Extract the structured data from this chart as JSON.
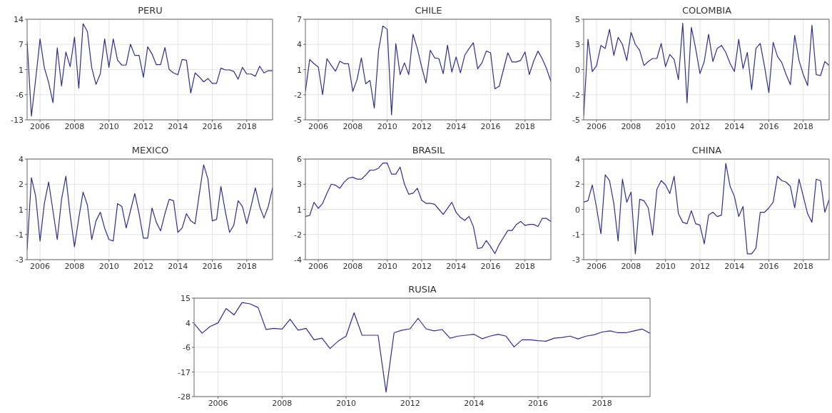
{
  "chart_data": [
    {
      "type": "line",
      "title": "PERU",
      "x": [
        2005.25,
        2005.5,
        2005.75,
        2006,
        2006.25,
        2006.5,
        2006.75,
        2007,
        2007.25,
        2007.5,
        2007.75,
        2008,
        2008.25,
        2008.5,
        2008.75,
        2009,
        2009.25,
        2009.5,
        2009.75,
        2010,
        2010.25,
        2010.5,
        2010.75,
        2011,
        2011.25,
        2011.5,
        2011.75,
        2012,
        2012.25,
        2012.5,
        2012.75,
        2013,
        2013.25,
        2013.5,
        2013.75,
        2014,
        2014.25,
        2014.5,
        2014.75,
        2015,
        2015.25,
        2015.5,
        2015.75,
        2016,
        2016.25,
        2016.5,
        2016.75,
        2017,
        2017.25,
        2017.5,
        2017.75,
        2018,
        2018.25,
        2018.5,
        2018.75,
        2019,
        2019.25,
        2019.5
      ],
      "series": [
        {
          "color": "#2e2e8f",
          "values": [
            8,
            -12,
            -2,
            8.7,
            1,
            -3,
            -8.4,
            6.3,
            -3.9,
            5.2,
            1.3,
            9.2,
            -4.5,
            12.8,
            10.7,
            1,
            -3.5,
            -0.6,
            8.7,
            1.1,
            8.7,
            3,
            1.7,
            1.7,
            7.3,
            4.3,
            4.3,
            -1.6,
            6.6,
            4.7,
            1.8,
            1.8,
            6.4,
            0.5,
            -0.4,
            -0.9,
            3.2,
            3,
            -5.8,
            -0.4,
            -1.5,
            -2.8,
            -1.9,
            -3.2,
            -3.2,
            0.9,
            0.4,
            0.4,
            0,
            -2.1,
            1.1,
            -0.7,
            -0.7,
            -1.3,
            1.4,
            -0.4,
            0.2,
            0.2
          ]
        }
      ],
      "xlim": [
        2005.25,
        2019.5
      ],
      "xticks": [
        2006,
        2008,
        2010,
        2012,
        2014,
        2016,
        2018
      ],
      "ylim": [
        -13,
        14
      ],
      "yticks": [
        -13,
        {
          "value": -6.25,
          "label": "-6"
        },
        {
          "value": 0.5,
          "label": "1"
        },
        {
          "value": 7.25,
          "label": "7"
        },
        14
      ],
      "grid": true
    },
    {
      "type": "line",
      "title": "CHILE",
      "x": [
        2005.25,
        2005.5,
        2005.75,
        2006,
        2006.25,
        2006.5,
        2006.75,
        2007,
        2007.25,
        2007.5,
        2007.75,
        2008,
        2008.25,
        2008.5,
        2008.75,
        2009,
        2009.25,
        2009.5,
        2009.75,
        2010,
        2010.25,
        2010.5,
        2010.75,
        2011,
        2011.25,
        2011.5,
        2011.75,
        2012,
        2012.25,
        2012.5,
        2012.75,
        2013,
        2013.25,
        2013.5,
        2013.75,
        2014,
        2014.25,
        2014.5,
        2014.75,
        2015,
        2015.25,
        2015.5,
        2015.75,
        2016,
        2016.25,
        2016.5,
        2016.75,
        2017,
        2017.25,
        2017.5,
        2017.75,
        2018,
        2018.25,
        2018.5,
        2018.75,
        2019,
        2019.25,
        2019.5
      ],
      "series": [
        {
          "color": "#2e2e8f",
          "values": [
            -1.6,
            2.2,
            1.7,
            1.3,
            -2,
            2.3,
            1.5,
            0.8,
            2,
            1.7,
            1.7,
            -1.6,
            -0.2,
            2.4,
            -0.7,
            -0.3,
            -3.6,
            3.3,
            6.2,
            5.8,
            -4.4,
            4.1,
            0.4,
            1.8,
            0.4,
            5.2,
            3.5,
            1.3,
            -0.6,
            3.3,
            2.4,
            2.3,
            0.5,
            3.9,
            0.7,
            2.5,
            0.6,
            2.7,
            3.5,
            4.2,
            1.1,
            1.8,
            3.2,
            3,
            -1.3,
            -1,
            1,
            3,
            1.9,
            1.9,
            2.1,
            3.1,
            0.4,
            2,
            3.2,
            2.3,
            1.1,
            -0.4
          ]
        }
      ],
      "xlim": [
        2005.25,
        2019.5
      ],
      "xticks": [
        2006,
        2008,
        2010,
        2012,
        2014,
        2016,
        2018
      ],
      "ylim": [
        -5,
        7
      ],
      "yticks": [
        -5,
        -2,
        1,
        4,
        7
      ],
      "grid": true
    },
    {
      "type": "line",
      "title": "COLOMBIA",
      "x": [
        2005.25,
        2005.5,
        2005.75,
        2006,
        2006.25,
        2006.5,
        2006.75,
        2007,
        2007.25,
        2007.5,
        2007.75,
        2008,
        2008.25,
        2008.5,
        2008.75,
        2009,
        2009.25,
        2009.5,
        2009.75,
        2010,
        2010.25,
        2010.5,
        2010.75,
        2011,
        2011.25,
        2011.5,
        2011.75,
        2012,
        2012.25,
        2012.5,
        2012.75,
        2013,
        2013.25,
        2013.5,
        2013.75,
        2014,
        2014.25,
        2014.5,
        2014.75,
        2015,
        2015.25,
        2015.5,
        2015.75,
        2016,
        2016.25,
        2016.5,
        2016.75,
        2017,
        2017.25,
        2017.5,
        2017.75,
        2018,
        2018.25,
        2018.5,
        2018.75,
        2019,
        2019.25,
        2019.5
      ],
      "series": [
        {
          "color": "#2e2e8f",
          "values": [
            -4.6,
            3,
            -0.2,
            0.4,
            2.4,
            2.1,
            4,
            1.4,
            3.2,
            2.5,
            0.9,
            3.7,
            2.5,
            1.9,
            0.4,
            0.8,
            1.1,
            1.1,
            2.6,
            0.3,
            1.5,
            1,
            -1,
            4.6,
            -3.3,
            4.2,
            2.1,
            -0.4,
            0.8,
            3.5,
            0.8,
            2.1,
            2.4,
            1.7,
            0.6,
            -0.2,
            3,
            0.1,
            1.7,
            -2,
            2.1,
            2.6,
            0.3,
            -2.3,
            2.7,
            1.3,
            0.7,
            -0.5,
            -1.5,
            3.4,
            0.9,
            -0.5,
            -1.6,
            4.4,
            -0.5,
            -0.6,
            0.8,
            0.4
          ]
        }
      ],
      "xlim": [
        2005.25,
        2019.5
      ],
      "xticks": [
        2006,
        2008,
        2010,
        2012,
        2014,
        2016,
        2018
      ],
      "ylim": [
        -5,
        5
      ],
      "yticks": [
        -5,
        {
          "value": -2.5,
          "label": "-2"
        },
        0,
        {
          "value": 2.5,
          "label": "3"
        },
        5
      ],
      "grid": true
    },
    {
      "type": "line",
      "title": "MEXICO",
      "x": [
        2005.25,
        2005.5,
        2005.75,
        2006,
        2006.25,
        2006.5,
        2006.75,
        2007,
        2007.25,
        2007.5,
        2007.75,
        2008,
        2008.25,
        2008.5,
        2008.75,
        2009,
        2009.25,
        2009.5,
        2009.75,
        2010,
        2010.25,
        2010.5,
        2010.75,
        2011,
        2011.25,
        2011.5,
        2011.75,
        2012,
        2012.25,
        2012.5,
        2012.75,
        2013,
        2013.25,
        2013.5,
        2013.75,
        2014,
        2014.25,
        2014.5,
        2014.75,
        2015,
        2015.25,
        2015.5,
        2015.75,
        2016,
        2016.25,
        2016.5,
        2016.75,
        2017,
        2017.25,
        2017.5,
        2017.75,
        2018,
        2018.25,
        2018.5,
        2018.75,
        2019,
        2019.25,
        2019.5
      ],
      "series": [
        {
          "color": "#2e2e8f",
          "values": [
            -2.3,
            2.7,
            1.4,
            -1.7,
            0.9,
            2.4,
            0.4,
            -1.6,
            1.2,
            2.8,
            0.1,
            -2.1,
            -0.1,
            1.7,
            0.8,
            -1.6,
            -0.3,
            0.3,
            -0.8,
            -1.6,
            -1.7,
            0.9,
            0.7,
            -0.8,
            0.4,
            1.6,
            0.2,
            -1.5,
            -1.5,
            0.6,
            -0.4,
            -1,
            0.2,
            1.2,
            1.1,
            -1.1,
            -0.8,
            0.2,
            -0.3,
            -0.5,
            1.6,
            3.6,
            2.6,
            -0.3,
            -0.2,
            2.1,
            0.4,
            -1.1,
            -0.6,
            1.1,
            0.7,
            -0.5,
            0.7,
            2,
            0.7,
            -0.1,
            0.7,
            2
          ]
        }
      ],
      "xlim": [
        2005.25,
        2019.5
      ],
      "xticks": [
        2006,
        2008,
        2010,
        2012,
        2014,
        2016,
        2018
      ],
      "ylim": [
        -3,
        4
      ],
      "yticks": [
        -3,
        {
          "value": -1.25,
          "label": "-1"
        },
        {
          "value": 0.5,
          "label": "1"
        },
        {
          "value": 2.25,
          "label": "2"
        },
        4
      ],
      "grid": true
    },
    {
      "type": "line",
      "title": "BRASIL",
      "x": [
        2005.25,
        2005.5,
        2005.75,
        2006,
        2006.25,
        2006.5,
        2006.75,
        2007,
        2007.25,
        2007.5,
        2007.75,
        2008,
        2008.25,
        2008.5,
        2008.75,
        2009,
        2009.25,
        2009.5,
        2009.75,
        2010,
        2010.25,
        2010.5,
        2010.75,
        2011,
        2011.25,
        2011.5,
        2011.75,
        2012,
        2012.25,
        2012.5,
        2012.75,
        2013,
        2013.25,
        2013.5,
        2013.75,
        2014,
        2014.25,
        2014.5,
        2014.75,
        2015,
        2015.25,
        2015.5,
        2015.75,
        2016,
        2016.25,
        2016.5,
        2016.75,
        2017,
        2017.25,
        2017.5,
        2017.75,
        2018,
        2018.25,
        2018.5,
        2018.75,
        2019,
        2019.25,
        2019.5
      ],
      "series": [
        {
          "color": "#2e2e8f",
          "values": [
            0.3,
            0.4,
            1.7,
            1.1,
            1.6,
            2.6,
            3.5,
            3.4,
            3.1,
            3.7,
            4.1,
            4.2,
            4,
            4,
            4.4,
            4.9,
            4.9,
            5.1,
            5.6,
            5.6,
            4.5,
            4.5,
            5.2,
            3.5,
            2.5,
            2.6,
            3.1,
            1.9,
            1.6,
            1.6,
            1.5,
            1,
            0.5,
            1.1,
            1.7,
            0.7,
            0.2,
            -0.1,
            0.3,
            -0.7,
            -2.9,
            -2.8,
            -2.1,
            -2.7,
            -3.4,
            -2.5,
            -1.8,
            -1.1,
            -1.1,
            -0.5,
            -0.2,
            -0.6,
            -0.5,
            -0.5,
            -0.7,
            0.1,
            0.1,
            -0.2
          ]
        }
      ],
      "xlim": [
        2005.25,
        2019.5
      ],
      "xticks": [
        2006,
        2008,
        2010,
        2012,
        2014,
        2016,
        2018
      ],
      "ylim": [
        -4,
        6
      ],
      "yticks": [
        -4,
        {
          "value": -1.5,
          "label": "-2"
        },
        1,
        {
          "value": 3.5,
          "label": "3"
        },
        6
      ],
      "grid": true
    },
    {
      "type": "line",
      "title": "CHINA",
      "x": [
        2005.25,
        2005.5,
        2005.75,
        2006,
        2006.25,
        2006.5,
        2006.75,
        2007,
        2007.25,
        2007.5,
        2007.75,
        2008,
        2008.25,
        2008.5,
        2008.75,
        2009,
        2009.25,
        2009.5,
        2009.75,
        2010,
        2010.25,
        2010.5,
        2010.75,
        2011,
        2011.25,
        2011.5,
        2011.75,
        2012,
        2012.25,
        2012.5,
        2012.75,
        2013,
        2013.25,
        2013.5,
        2013.75,
        2014,
        2014.25,
        2014.5,
        2014.75,
        2015,
        2015.25,
        2015.5,
        2015.75,
        2016,
        2016.25,
        2016.5,
        2016.75,
        2017,
        2017.25,
        2017.5,
        2017.75,
        2018,
        2018.25,
        2018.5,
        2018.75,
        2019,
        2019.25,
        2019.5
      ],
      "series": [
        {
          "color": "#2e2e8f",
          "values": [
            1,
            1.1,
            2.2,
            0.6,
            -1.2,
            2.9,
            2.5,
            0.9,
            -1.7,
            2.6,
            1,
            1.7,
            -2.6,
            1.2,
            1.1,
            0.6,
            -1.3,
            1.9,
            2.5,
            2.2,
            1.6,
            2.8,
            0.2,
            -0.4,
            -0.5,
            0.4,
            -0.5,
            -0.6,
            -1.9,
            0.1,
            0.3,
            0,
            0.1,
            3.7,
            2.1,
            1.4,
            0,
            0.7,
            -2.6,
            -2.6,
            -2.2,
            0.3,
            0.3,
            0.6,
            1,
            2.8,
            2.5,
            2.4,
            2.1,
            0.6,
            2.6,
            1.4,
            0.2,
            -0.4,
            2.6,
            2.5,
            0.3,
            1.2
          ]
        }
      ],
      "xlim": [
        2005.25,
        2019.5
      ],
      "xticks": [
        2006,
        2008,
        2010,
        2012,
        2014,
        2016,
        2018
      ],
      "ylim": [
        -3,
        4
      ],
      "yticks": [
        -3,
        {
          "value": -1.25,
          "label": "-1"
        },
        {
          "value": 0.5,
          "label": "0"
        },
        {
          "value": 2.25,
          "label": "2"
        },
        4
      ],
      "grid": true
    },
    {
      "type": "line",
      "title": "RUSIA",
      "x": [
        2005.25,
        2005.5,
        2005.75,
        2006,
        2006.25,
        2006.5,
        2006.75,
        2007,
        2007.25,
        2007.5,
        2007.75,
        2008,
        2008.25,
        2008.5,
        2008.75,
        2009,
        2009.25,
        2009.5,
        2009.75,
        2010,
        2010.25,
        2010.5,
        2010.75,
        2011,
        2011.25,
        2011.5,
        2011.75,
        2012,
        2012.25,
        2012.5,
        2012.75,
        2013,
        2013.25,
        2013.5,
        2013.75,
        2014,
        2014.25,
        2014.5,
        2014.75,
        2015,
        2015.25,
        2015.5,
        2015.75,
        2016,
        2016.25,
        2016.5,
        2016.75,
        2017,
        2017.25,
        2017.5,
        2017.75,
        2018,
        2018.25,
        2018.5,
        2018.75,
        2019,
        2019.25,
        2019.5
      ],
      "series": [
        {
          "color": "#2e2e8f",
          "values": [
            3.9,
            -0.3,
            2.6,
            4.2,
            10.5,
            7.7,
            13.1,
            12.5,
            10.9,
            1.3,
            1.8,
            1.5,
            5.8,
            1,
            1.8,
            -3.2,
            -2.5,
            -7,
            -3.8,
            -1.6,
            8.6,
            -1.2,
            -1.2,
            -1.2,
            -26,
            -0.1,
            1,
            1.6,
            6.2,
            1.6,
            0.7,
            1.3,
            -2.5,
            -1.6,
            -1.2,
            -0.8,
            -2.7,
            -1.6,
            -0.8,
            -1.6,
            -6.3,
            -3.2,
            -3.2,
            -3.6,
            -3.8,
            -2.5,
            -2.2,
            -1.6,
            -2.8,
            -1.6,
            -1,
            0.2,
            0.7,
            -0.1,
            -0.1,
            0.7,
            1.5,
            -0.3
          ]
        }
      ],
      "xlim": [
        2005.25,
        2019.5
      ],
      "xticks": [
        2006,
        2008,
        2010,
        2012,
        2014,
        2016,
        2018
      ],
      "ylim": [
        -28,
        15
      ],
      "yticks": [
        -28,
        {
          "value": -17.25,
          "label": "-17"
        },
        {
          "value": -6.5,
          "label": "-6"
        },
        {
          "value": 4.25,
          "label": "4"
        },
        15
      ],
      "grid": true
    }
  ]
}
